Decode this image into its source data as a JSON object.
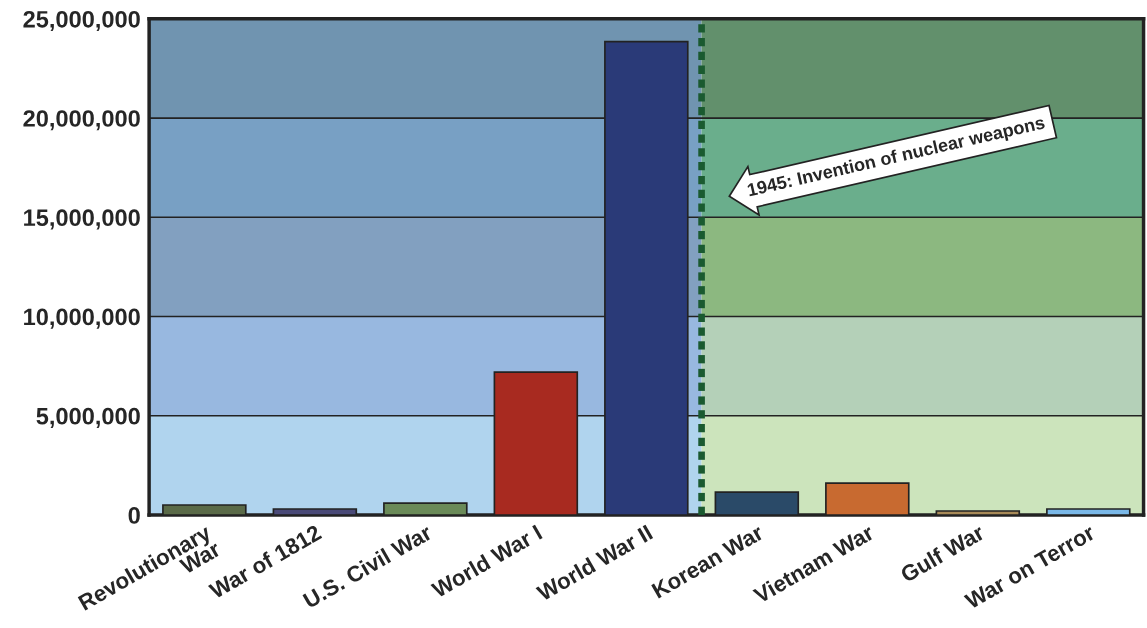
{
  "chart_data": {
    "type": "bar",
    "categories": [
      "Revolutionary\nWar",
      "War of 1812",
      "U.S. Civil War",
      "World War I",
      "World War II",
      "Korean War",
      "Vietnam War",
      "Gulf War",
      "War on Terror"
    ],
    "values": [
      500000,
      300000,
      600000,
      7200000,
      23850000,
      1150000,
      1600000,
      200000,
      300000
    ],
    "colors": [
      "#5a6a48",
      "#4a4a78",
      "#6a8a58",
      "#a82a20",
      "#2a3a78",
      "#2a4a68",
      "#c86a30",
      "#a88a58",
      "#7ab8e8"
    ],
    "ylim": [
      0,
      25000000
    ],
    "yticks": [
      {
        "value": 0,
        "label": "0"
      },
      {
        "value": 5000000,
        "label": "5,000,000"
      },
      {
        "value": 10000000,
        "label": "10,000,000"
      },
      {
        "value": 15000000,
        "label": "15,000,000"
      },
      {
        "value": 20000000,
        "label": "20,000,000"
      },
      {
        "value": 25000000,
        "label": "25,000,000"
      }
    ],
    "grid": "y",
    "annotations": [
      "1945: Invention of nuclear weapons"
    ]
  }
}
